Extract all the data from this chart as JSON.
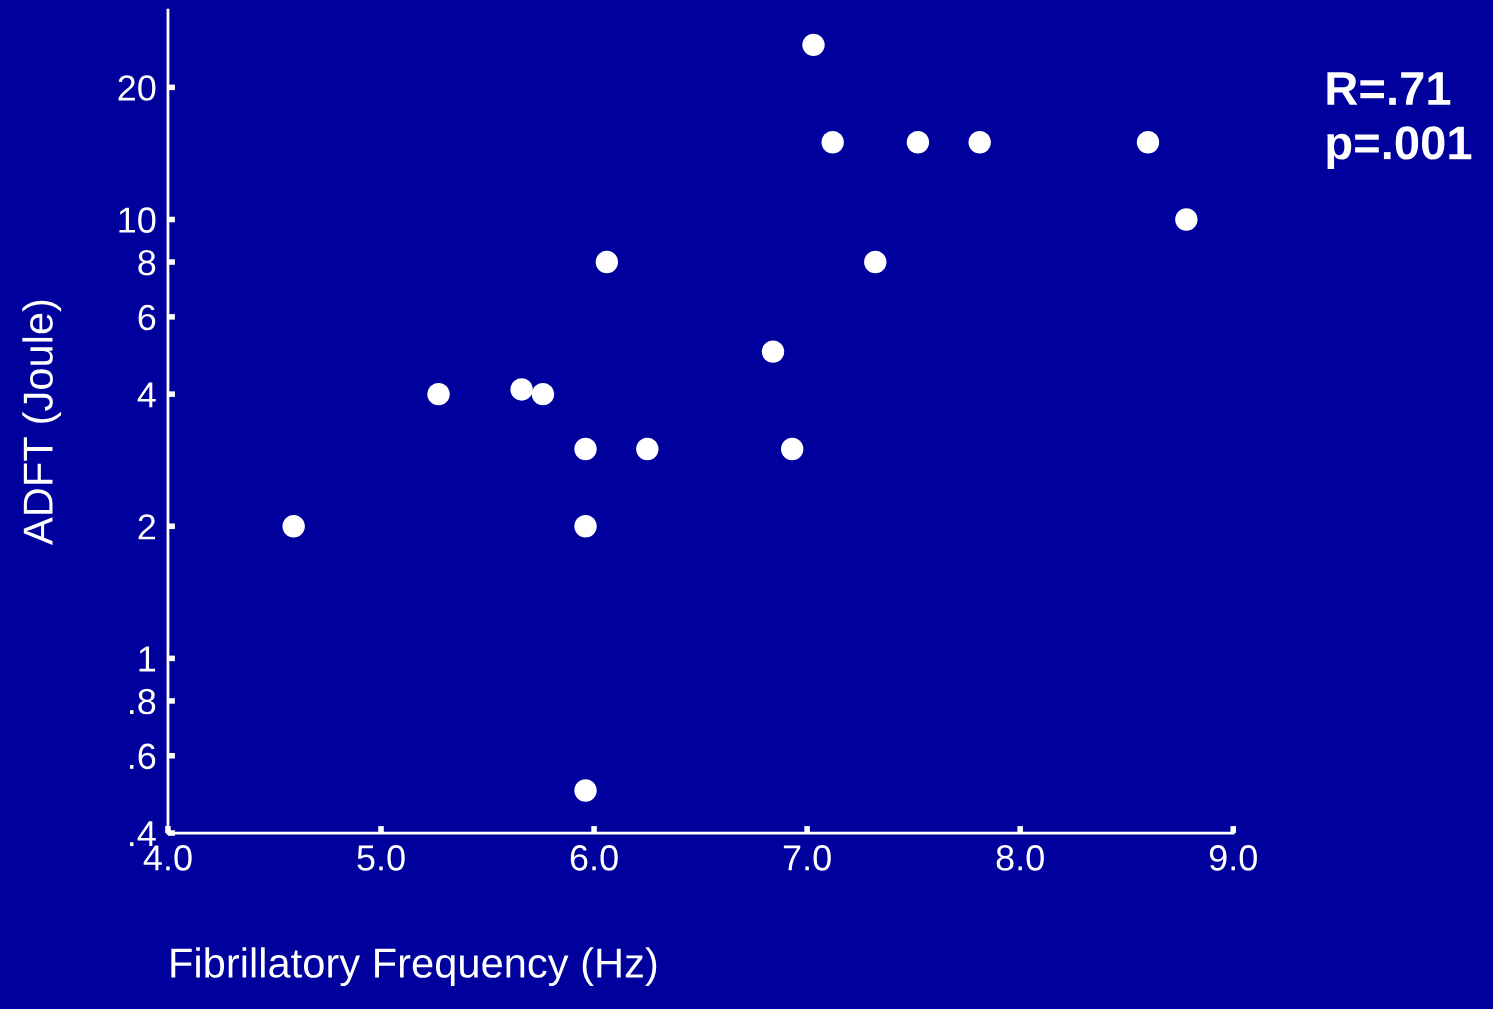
{
  "chart_data": {
    "type": "scatter",
    "xlabel": "Fibrillatory Frequency (Hz)",
    "ylabel": "ADFT (Joule)",
    "annotations": [
      "R=.71\np=.001"
    ],
    "x": [
      4.59,
      5.27,
      5.66,
      5.76,
      5.96,
      5.96,
      5.96,
      6.06,
      6.25,
      6.84,
      6.93,
      7.03,
      7.12,
      7.32,
      7.52,
      7.81,
      8.6,
      8.78
    ],
    "series": [
      {
        "color": "#ffffff",
        "values": [
          2,
          4,
          4.1,
          4,
          3,
          2,
          0.5,
          8,
          3,
          5,
          3,
          25,
          15,
          8,
          15,
          15,
          15,
          10
        ]
      }
    ],
    "marker": "circle",
    "log": "y",
    "grid": false,
    "xlim": [
      4.0,
      9.0
    ],
    "xticks": [
      {
        "value": 4,
        "label": "4.0"
      },
      {
        "value": 5,
        "label": "5.0"
      },
      {
        "value": 6,
        "label": "6.0"
      },
      {
        "value": 7,
        "label": "7.0"
      },
      {
        "value": 8,
        "label": "8.0"
      },
      {
        "value": 9,
        "label": "9.0"
      }
    ],
    "ylim": [
      0.4,
      30
    ],
    "yticks": [
      {
        "value": 0.4,
        "label": ".4"
      },
      {
        "value": 0.6,
        "label": ".6"
      },
      {
        "value": 0.8,
        "label": ".8"
      },
      1,
      2,
      4,
      6,
      8,
      10,
      20
    ]
  }
}
